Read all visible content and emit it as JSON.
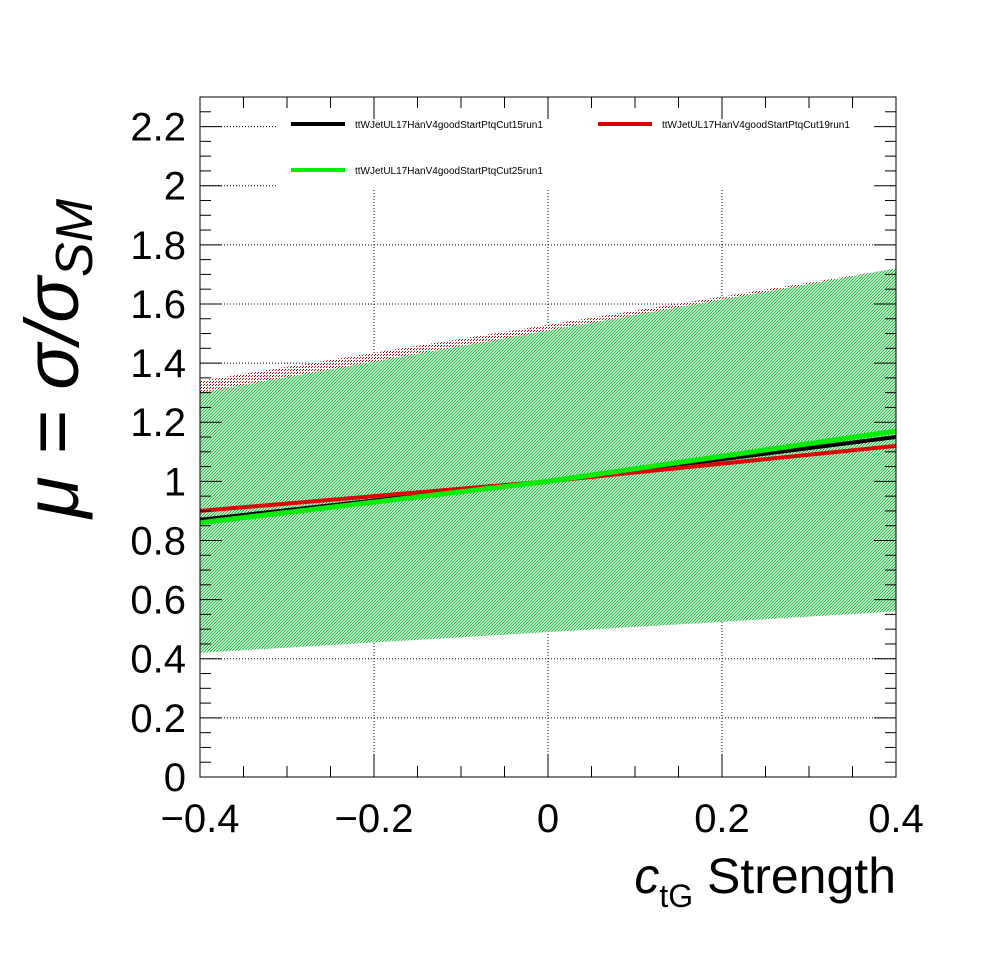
{
  "chart_data": {
    "type": "line",
    "title": "",
    "xlabel_main": "c",
    "xlabel_sub": "tG",
    "xlabel_suffix": " Strength",
    "ylabel_prefix": "μ = σ/σ",
    "ylabel_sub": "SM",
    "xlim": [
      -0.4,
      0.4
    ],
    "ylim": [
      0,
      2.3
    ],
    "x_ticks": [
      {
        "value": -0.4,
        "label": "−0.4"
      },
      {
        "value": -0.2,
        "label": "−0.2"
      },
      {
        "value": 0,
        "label": "0"
      },
      {
        "value": 0.2,
        "label": "0.2"
      },
      {
        "value": 0.4,
        "label": "0.4"
      }
    ],
    "y_ticks": [
      {
        "value": 0,
        "label": "0"
      },
      {
        "value": 0.2,
        "label": "0.2"
      },
      {
        "value": 0.4,
        "label": "0.4"
      },
      {
        "value": 0.6,
        "label": "0.6"
      },
      {
        "value": 0.8,
        "label": "0.8"
      },
      {
        "value": 1.0,
        "label": "1"
      },
      {
        "value": 1.2,
        "label": "1.2"
      },
      {
        "value": 1.4,
        "label": "1.4"
      },
      {
        "value": 1.6,
        "label": "1.6"
      },
      {
        "value": 1.8,
        "label": "1.8"
      },
      {
        "value": 2.0,
        "label": "2"
      },
      {
        "value": 2.2,
        "label": "2.2"
      }
    ],
    "grid": true,
    "legend_position": "top",
    "bands": [
      {
        "series": "ttWJetUL17HanV4goodStartPtqCut19run1",
        "color": "#cc0000",
        "x": [
          -0.4,
          0.4
        ],
        "upper": [
          1.34,
          1.72
        ],
        "lower": [
          0.43,
          0.6
        ]
      },
      {
        "series": "ttWJetUL17HanV4goodStartPtqCut25run1",
        "color": "#33cc55",
        "x": [
          -0.4,
          0.4
        ],
        "upper": [
          1.3,
          1.72
        ],
        "lower": [
          0.42,
          0.56
        ]
      }
    ],
    "series": [
      {
        "name": "ttWJetUL17HanV4goodStartPtqCut15run1",
        "color": "#000000",
        "x": [
          -0.4,
          0.0,
          0.4
        ],
        "y": [
          0.87,
          1.0,
          1.15
        ]
      },
      {
        "name": "ttWJetUL17HanV4goodStartPtqCut19run1",
        "color": "#dd0000",
        "x": [
          -0.4,
          0.0,
          0.4
        ],
        "y": [
          0.9,
          1.0,
          1.12
        ]
      },
      {
        "name": "ttWJetUL17HanV4goodStartPtqCut25run1",
        "color": "#00ee00",
        "x": [
          -0.4,
          0.0,
          0.4
        ],
        "y": [
          0.86,
          1.0,
          1.17
        ]
      }
    ]
  }
}
